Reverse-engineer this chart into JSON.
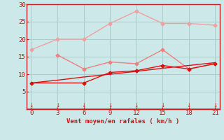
{
  "x": [
    0,
    3,
    6,
    9,
    12,
    15,
    18,
    21
  ],
  "line1": [
    17,
    20,
    20,
    24.5,
    28,
    24.5,
    24.5,
    24
  ],
  "line2": [
    null,
    15.5,
    11.5,
    13.5,
    13,
    17,
    11.5,
    13
  ],
  "line3": [
    7.5,
    null,
    7.5,
    10.5,
    11,
    12.5,
    11.5,
    13
  ],
  "line4": [
    7.5,
    8.3,
    9.2,
    10.0,
    10.8,
    11.7,
    12.5,
    13.3
  ],
  "line1_color": "#f0a0a0",
  "line2_color": "#f08080",
  "line3_color": "#dd1111",
  "line4_color": "#dd1111",
  "bg_color": "#cce8e8",
  "grid_color": "#aacccc",
  "axis_color": "#cc2222",
  "text_color": "#cc1111",
  "xlabel": "Vent moyen/en rafales ( km/h )",
  "xlim": [
    -0.5,
    21.5
  ],
  "ylim": [
    0,
    30
  ],
  "yticks": [
    5,
    10,
    15,
    20,
    25,
    30
  ],
  "xticks": [
    0,
    3,
    6,
    9,
    12,
    15,
    18,
    21
  ]
}
